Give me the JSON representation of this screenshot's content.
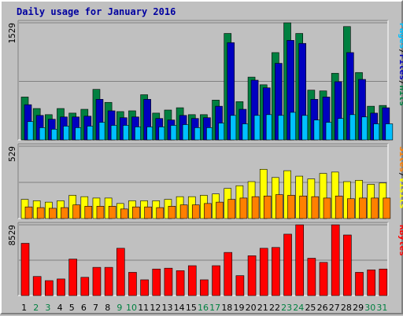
{
  "title": "Daily usage for January 2016",
  "colors": {
    "pages": "#00c0ff",
    "files": "#0000c0",
    "hits": "#008040",
    "sites": "#ff8000",
    "visits": "#ffff00",
    "kbytes": "#ff0000",
    "weekend": "#008040",
    "weekday": "#000000"
  },
  "legend": {
    "top": [
      {
        "text": "Pages",
        "color": "#00c0ff"
      },
      {
        "text": "/",
        "color": "#000000"
      },
      {
        "text": "Files",
        "color": "#0000c0"
      },
      {
        "text": "/",
        "color": "#000000"
      },
      {
        "text": "Hits",
        "color": "#008040"
      }
    ],
    "middle": [
      {
        "text": "Sites",
        "color": "#ff8000"
      },
      {
        "text": "/",
        "color": "#000000"
      },
      {
        "text": "Visits",
        "color": "#ffff00"
      }
    ],
    "bottom": [
      {
        "text": "KBytes",
        "color": "#ff0000"
      }
    ]
  },
  "chart_data": {
    "type": "bar",
    "title": "Daily usage for January 2016",
    "categories": [
      "1",
      "2",
      "3",
      "4",
      "5",
      "6",
      "7",
      "8",
      "9",
      "10",
      "11",
      "12",
      "13",
      "14",
      "15",
      "16",
      "17",
      "18",
      "19",
      "20",
      "21",
      "22",
      "23",
      "24",
      "25",
      "26",
      "27",
      "28",
      "29",
      "30",
      "31"
    ],
    "weekend_days": [
      "2",
      "3",
      "9",
      "10",
      "16",
      "17",
      "23",
      "24",
      "30",
      "31"
    ],
    "panels": [
      {
        "name": "hits-files-pages",
        "max_label": "1529",
        "ylim": [
          0,
          1529
        ],
        "series": [
          {
            "name": "Hits",
            "values": [
              560,
              410,
              330,
              410,
              350,
              400,
              660,
              490,
              370,
              380,
              590,
              350,
              390,
              420,
              330,
              330,
              520,
              1390,
              500,
              820,
              720,
              1140,
              1529,
              1390,
              650,
              640,
              870,
              1480,
              880,
              440,
              450
            ]
          },
          {
            "name": "Files",
            "values": [
              460,
              320,
              270,
              300,
              300,
              310,
              530,
              380,
              290,
              300,
              530,
              280,
              260,
              320,
              280,
              290,
              440,
              1270,
              400,
              780,
              680,
              1000,
              1300,
              1260,
              530,
              560,
              760,
              1140,
              790,
              350,
              420
            ]
          },
          {
            "name": "Pages",
            "values": [
              240,
              160,
              140,
              180,
              160,
              180,
              230,
              190,
              190,
              170,
              170,
              170,
              190,
              200,
              160,
              160,
              220,
              320,
              210,
              320,
              330,
              320,
              360,
              320,
              260,
              230,
              280,
              330,
              300,
              210,
              210
            ]
          }
        ]
      },
      {
        "name": "visits-sites",
        "max_label": "529",
        "ylim": [
          0,
          529
        ],
        "series": [
          {
            "name": "Visits",
            "values": [
              140,
              130,
              120,
              130,
              170,
              160,
              150,
              150,
              110,
              130,
              130,
              130,
              140,
              160,
              160,
              170,
              180,
              220,
              240,
              270,
              360,
              300,
              350,
              310,
              290,
              330,
              340,
              270,
              280,
              250,
              260
            ]
          },
          {
            "name": "Sites",
            "values": [
              85,
              80,
              75,
              80,
              100,
              90,
              90,
              90,
              70,
              85,
              85,
              80,
              90,
              100,
              100,
              110,
              120,
              140,
              150,
              160,
              165,
              175,
              170,
              165,
              160,
              150,
              165,
              145,
              150,
              150,
              150
            ]
          }
        ]
      },
      {
        "name": "kbytes",
        "max_label": "8529",
        "ylim": [
          0,
          8529
        ],
        "series": [
          {
            "name": "KBytes",
            "values": [
              6300,
              2300,
              1800,
              2000,
              4400,
              2200,
              3400,
              3400,
              5700,
              2800,
              1900,
              3200,
              3300,
              3000,
              3600,
              1900,
              3600,
              5200,
              2400,
              4800,
              5700,
              5800,
              7400,
              8529,
              4500,
              4000,
              8529,
              7300,
              2800,
              3100,
              3200
            ]
          }
        ]
      }
    ]
  }
}
